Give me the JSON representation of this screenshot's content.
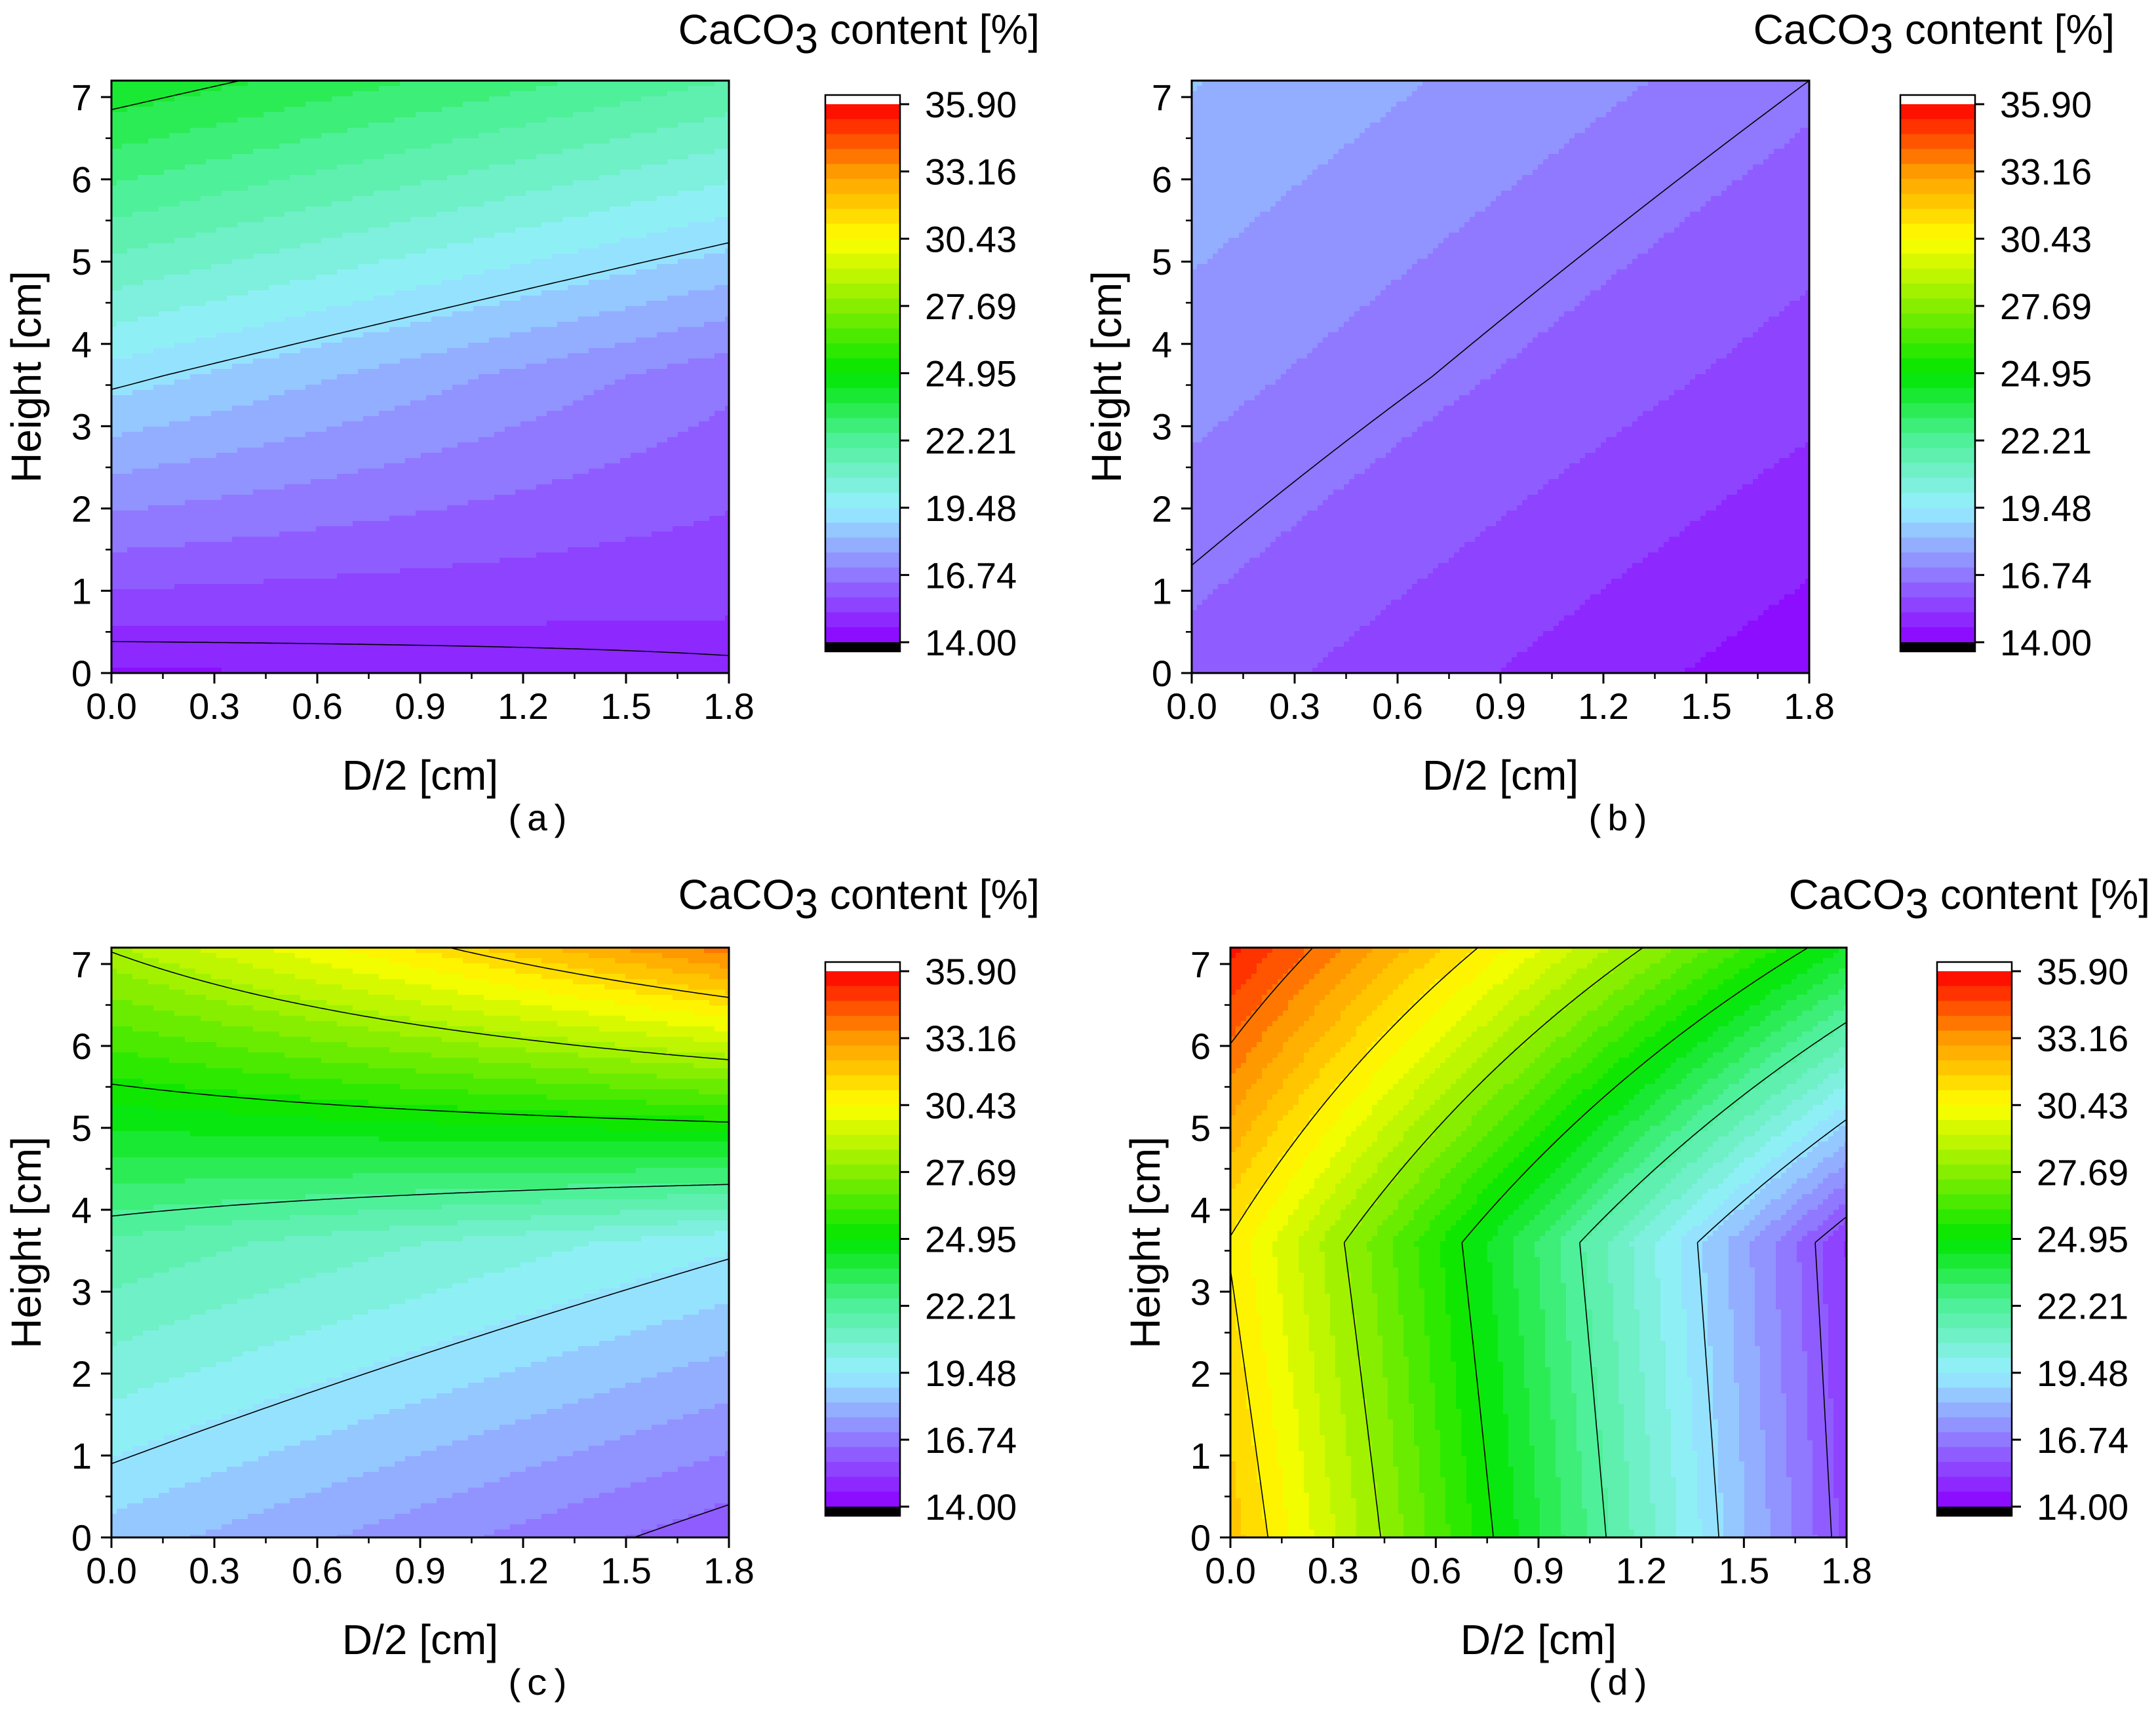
{
  "figure": {
    "colorbar": {
      "title_prefix": "CaCO",
      "title_sub": "3",
      "title_suffix": " content [%]",
      "ticks": [
        "35.90",
        "33.16",
        "30.43",
        "27.69",
        "24.95",
        "22.21",
        "19.48",
        "16.74",
        "14.00"
      ],
      "min": 14.0,
      "max": 35.9,
      "levels": 36
    },
    "palette": {
      "stops": [
        {
          "v": 14.0,
          "color": "#8c00ff"
        },
        {
          "v": 16.74,
          "color": "#9078ff"
        },
        {
          "v": 19.48,
          "color": "#96f0ff"
        },
        {
          "v": 22.21,
          "color": "#4ff09a"
        },
        {
          "v": 24.95,
          "color": "#00e600"
        },
        {
          "v": 27.69,
          "color": "#88ee00"
        },
        {
          "v": 30.43,
          "color": "#ffff00"
        },
        {
          "v": 33.16,
          "color": "#ff9900"
        },
        {
          "v": 35.9,
          "color": "#ff0000"
        }
      ],
      "under": "#000000",
      "over": "#ffffff"
    }
  },
  "chart_data": [
    {
      "type": "contour",
      "panel_label": "(a)",
      "xlabel": "D/2 [cm]",
      "ylabel": "Height [cm]",
      "xlim": [
        0,
        1.8
      ],
      "ylim": [
        0,
        7.2
      ],
      "xticks": [
        "0.0",
        "0.3",
        "0.6",
        "0.9",
        "1.2",
        "1.5",
        "1.8"
      ],
      "yticks": [
        "0",
        "1",
        "2",
        "3",
        "4",
        "5",
        "6",
        "7"
      ],
      "x": [
        0,
        1.8
      ],
      "y": [
        0,
        3.6,
        7.2
      ],
      "z": [
        [
          14.5,
          14.9
        ],
        [
          19.2,
          16.6
        ],
        [
          24.3,
          21.9
        ]
      ],
      "contour_lines": [
        15.0,
        19.0,
        23.8
      ]
    },
    {
      "type": "contour",
      "panel_label": "(b)",
      "xlabel": "D/2 [cm]",
      "ylabel": "Height [cm]",
      "xlim": [
        0,
        1.8
      ],
      "ylim": [
        0,
        7.2
      ],
      "xticks": [
        "0.0",
        "0.3",
        "0.6",
        "0.9",
        "1.2",
        "1.5",
        "1.8"
      ],
      "yticks": [
        "0",
        "1",
        "2",
        "3",
        "4",
        "5",
        "6",
        "7"
      ],
      "x": [
        0,
        1.8
      ],
      "y": [
        0,
        3.6,
        7.2
      ],
      "z": [
        [
          16.2,
          14.2
        ],
        [
          17.3,
          15.5
        ],
        [
          18.3,
          16.6
        ]
      ],
      "contour_lines": [
        16.6
      ]
    },
    {
      "type": "contour",
      "panel_label": "(c)",
      "xlabel": "D/2 [cm]",
      "ylabel": "Height [cm]",
      "xlim": [
        0,
        1.8
      ],
      "ylim": [
        0,
        7.2
      ],
      "xticks": [
        "0.0",
        "0.3",
        "0.6",
        "0.9",
        "1.2",
        "1.5",
        "1.8"
      ],
      "yticks": [
        "0",
        "1",
        "2",
        "3",
        "4",
        "5",
        "6",
        "7"
      ],
      "x": [
        0,
        1.8
      ],
      "y": [
        0,
        3.6,
        7.2
      ],
      "z": [
        [
          18.6,
          16.0
        ],
        [
          21.8,
          19.6
        ],
        [
          28.5,
          33.8
        ]
      ],
      "contour_lines": [
        16.4,
        19.4,
        22.4,
        25.4,
        28.4,
        31.4,
        34.4
      ]
    },
    {
      "type": "contour",
      "panel_label": "(d)",
      "xlabel": "D/2 [cm]",
      "ylabel": "Height [cm]",
      "xlim": [
        0,
        1.8
      ],
      "ylim": [
        0,
        7.2
      ],
      "xticks": [
        "0.0",
        "0.3",
        "0.6",
        "0.9",
        "1.2",
        "1.5",
        "1.8"
      ],
      "yticks": [
        "0",
        "1",
        "2",
        "3",
        "4",
        "5",
        "6",
        "7"
      ],
      "x": [
        0,
        1.8
      ],
      "y": [
        0,
        3.6,
        7.2
      ],
      "z": [
        [
          32.0,
          15.6
        ],
        [
          30.9,
          15.2
        ],
        [
          35.5,
          24.3
        ]
      ],
      "contour_lines": [
        16.0,
        19.0,
        22.0,
        25.0,
        28.0,
        31.0,
        34.0
      ]
    }
  ]
}
